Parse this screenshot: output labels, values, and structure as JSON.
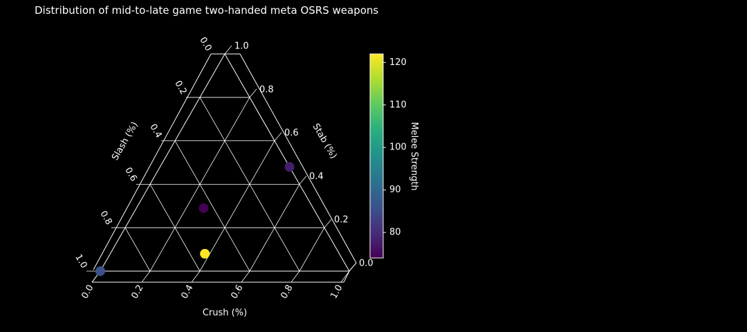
{
  "chart_data": {
    "type": "scatter",
    "subtype": "ternary",
    "title": "Distribution of mid-to-late game two-handed meta OSRS weapons",
    "axes": {
      "crush": {
        "label": "Crush (%)",
        "ticks": [
          "0.0",
          "0.2",
          "0.4",
          "0.6",
          "0.8",
          "1.0"
        ]
      },
      "stab": {
        "label": "Stab (%)",
        "ticks": [
          "0.0",
          "0.2",
          "0.4",
          "0.6",
          "0.8",
          "1.0"
        ]
      },
      "slash": {
        "label": "Slash (%)",
        "ticks": [
          "0.0",
          "0.2",
          "0.4",
          "0.6",
          "0.8",
          "1.0"
        ]
      }
    },
    "grid": true,
    "points": [
      {
        "crush": 0.38,
        "stab": 0.08,
        "slash": 0.54,
        "strength": 122
      },
      {
        "crush": 0.27,
        "stab": 0.29,
        "slash": 0.44,
        "strength": 74
      },
      {
        "crush": 0.52,
        "stab": 0.48,
        "slash": 0.0,
        "strength": 78
      },
      {
        "crush": 0.0,
        "stab": 0.0,
        "slash": 1.0,
        "strength": 86
      }
    ],
    "colorbar": {
      "label": "Melee Strength",
      "colormap": "viridis",
      "range": [
        74,
        122
      ],
      "ticks": [
        "80",
        "90",
        "100",
        "110",
        "120"
      ]
    },
    "colors": {
      "background": "#000000",
      "foreground": "#ffffff"
    }
  }
}
